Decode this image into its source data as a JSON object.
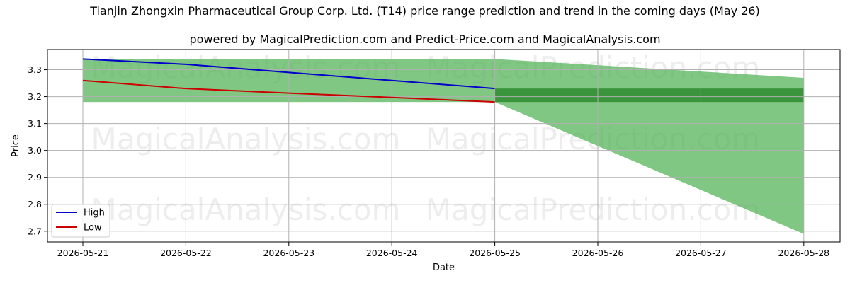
{
  "title": "Tianjin Zhongxin Pharmaceutical Group Corp. Ltd. (T14) price range prediction and trend in the coming days (May 26)",
  "subtitle": "powered by MagicalPrediction.com and Predict-Price.com and MagicalAnalysis.com",
  "watermarks": [
    "MagicalAnalysis.com",
    "MagicalPrediction.com"
  ],
  "colors": {
    "high": "#0000cc",
    "low": "#cc0000",
    "band": "#4caf50",
    "band_dark": "#2e8b2e",
    "grid": "#b0b0b0"
  },
  "chart_data": {
    "type": "line",
    "xlabel": "Date",
    "ylabel": "Price",
    "x": [
      "2026-05-21",
      "2026-05-22",
      "2026-05-23",
      "2026-05-24",
      "2026-05-25",
      "2026-05-26",
      "2026-05-27",
      "2026-05-28"
    ],
    "ylim": [
      2.66,
      3.375
    ],
    "yticks": [
      "2.7",
      "2.8",
      "2.9",
      "3.0",
      "3.1",
      "3.2",
      "3.3"
    ],
    "grid": true,
    "legend_position": "bottom-left",
    "series": [
      {
        "name": "High",
        "x": [
          "2026-05-21",
          "2026-05-22",
          "2026-05-23",
          "2026-05-24",
          "2026-05-25"
        ],
        "values": [
          3.34,
          3.32,
          3.29,
          3.26,
          3.23
        ]
      },
      {
        "name": "Low",
        "x": [
          "2026-05-21",
          "2026-05-22",
          "2026-05-23",
          "2026-05-24",
          "2026-05-25"
        ],
        "values": [
          3.26,
          3.23,
          3.213,
          3.197,
          3.18
        ]
      }
    ],
    "historical_band": {
      "x_start": "2026-05-21",
      "x_end": "2026-05-25",
      "upper": 3.34,
      "lower": 3.18
    },
    "prediction_band": {
      "x": [
        "2026-05-25",
        "2026-05-28"
      ],
      "upper": [
        3.34,
        3.27
      ],
      "lower": [
        3.18,
        2.69
      ]
    },
    "prediction_core_band": {
      "x": [
        "2026-05-25",
        "2026-05-28"
      ],
      "upper": 3.23,
      "lower": 3.18
    }
  }
}
